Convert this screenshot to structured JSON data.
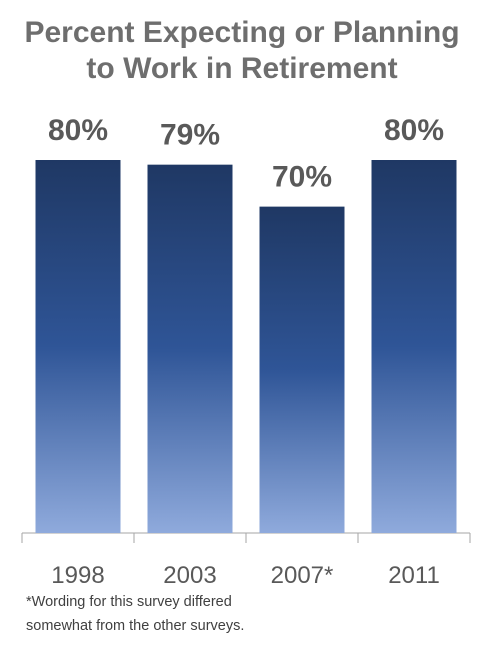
{
  "chart_data": {
    "type": "bar",
    "title": [
      "Percent Expecting or Planning",
      "to Work in Retirement"
    ],
    "categories": [
      "1998",
      "2003",
      "2007*",
      "2011"
    ],
    "values": [
      80,
      79,
      70,
      80
    ],
    "value_labels": [
      "80%",
      "79%",
      "70%",
      "80%"
    ],
    "ylim": [
      0,
      80
    ],
    "footnote": [
      "*Wording for this survey differed",
      "somewhat from the other surveys."
    ]
  }
}
